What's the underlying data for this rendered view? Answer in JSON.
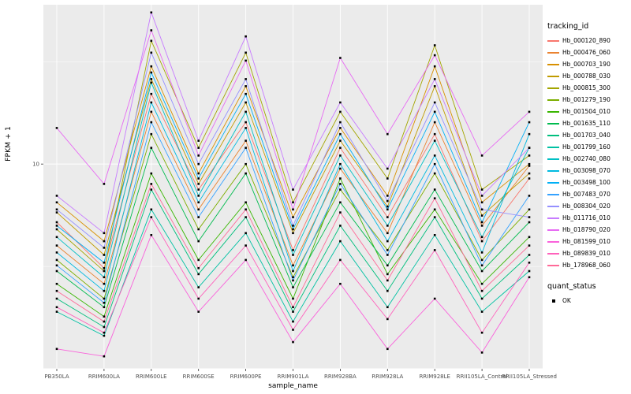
{
  "axes": {
    "x_title": "sample_name",
    "y_title": "FPKM + 1",
    "y_tick_label": "10"
  },
  "panel": {
    "bg": "#EBEBEB",
    "grid_major": "#FFFFFF",
    "grid_minor": "#FFFFFF",
    "tick_color": "#333333",
    "tick_label_color": "#4D4D4D",
    "point_color": "#000000"
  },
  "legend": {
    "tracking_title": "tracking_id",
    "quant_title": "quant_status",
    "quant_value": "OK",
    "quant_key_color": "#000000",
    "position": "right"
  },
  "chart_data": {
    "type": "line",
    "title": "",
    "xlabel": "sample_name",
    "ylabel": "FPKM + 1",
    "y_scale": "log10",
    "ylim": [
      1,
      60
    ],
    "y_major_ticks": [
      10
    ],
    "y_gridlines_major": [
      1,
      10
    ],
    "y_gridlines_minor": [
      3.162,
      31.62
    ],
    "grid": true,
    "legend_position": "right",
    "categories": [
      "PB350LA",
      "RRIM600LA",
      "RRIM600LE",
      "RRIM600SE",
      "RRIM600PE",
      "RRIM901LA",
      "RRIM928BA",
      "RRIM928LA",
      "RRIM928LE",
      "RRII105LA_Control",
      "RRII105LA_Stressed"
    ],
    "series": [
      {
        "name": "Hb_000120_890",
        "color": "#F8766D",
        "values": [
          5.2,
          3.1,
          22,
          7.5,
          16,
          3.8,
          12,
          5.5,
          14,
          4.2,
          8.5
        ]
      },
      {
        "name": "Hb_000476_060",
        "color": "#EA8331",
        "values": [
          4.0,
          2.6,
          18,
          6.0,
          13,
          3.2,
          9.5,
          4.6,
          16,
          5.0,
          9.8
        ]
      },
      {
        "name": "Hb_000703_190",
        "color": "#D89000",
        "values": [
          6.5,
          4.2,
          30,
          9.0,
          24,
          5.5,
          15,
          7.0,
          30,
          6.5,
          10
        ]
      },
      {
        "name": "Hb_000788_030",
        "color": "#C09B00",
        "values": [
          5.8,
          3.6,
          26,
          8.0,
          20,
          4.6,
          13,
          6.2,
          24,
          5.6,
          9.0
        ]
      },
      {
        "name": "Hb_000815_300",
        "color": "#A3A500",
        "values": [
          4.8,
          3.0,
          40,
          12,
          35,
          6.5,
          18,
          8.5,
          38,
          7.5,
          11
        ]
      },
      {
        "name": "Hb_001279_190",
        "color": "#7CAE00",
        "values": [
          3.4,
          2.2,
          14,
          4.8,
          10,
          2.8,
          7.5,
          3.8,
          9.0,
          3.4,
          6.0
        ]
      },
      {
        "name": "Hb_001504_010",
        "color": "#39B600",
        "values": [
          2.6,
          1.8,
          9.0,
          3.4,
          6.5,
          2.2,
          8.5,
          2.9,
          6.0,
          2.6,
          4.4
        ]
      },
      {
        "name": "Hb_001635_110",
        "color": "#00BB4E",
        "values": [
          3.0,
          2.0,
          12,
          4.2,
          9.0,
          2.5,
          6.5,
          3.2,
          7.5,
          3.0,
          5.2
        ]
      },
      {
        "name": "Hb_001703_040",
        "color": "#00BF7D",
        "values": [
          2.2,
          1.6,
          7.5,
          2.9,
          5.5,
          1.9,
          5.0,
          2.4,
          5.5,
          2.2,
          3.6
        ]
      },
      {
        "name": "Hb_001799_160",
        "color": "#00C1A3",
        "values": [
          1.9,
          1.45,
          6.0,
          2.5,
          4.6,
          1.7,
          4.2,
          2.0,
          4.5,
          1.9,
          3.0
        ]
      },
      {
        "name": "Hb_002740_080",
        "color": "#00BFC4",
        "values": [
          4.4,
          2.8,
          25,
          7.0,
          18,
          3.6,
          11,
          5.0,
          13,
          4.4,
          12
        ]
      },
      {
        "name": "Hb_003098_070",
        "color": "#00BAE0",
        "values": [
          3.7,
          2.4,
          20,
          6.5,
          15,
          3.0,
          10,
          4.2,
          11,
          3.7,
          14
        ]
      },
      {
        "name": "Hb_003498_100",
        "color": "#00B0F6",
        "values": [
          5.0,
          3.3,
          28,
          8.5,
          22,
          4.8,
          14,
          6.0,
          18,
          5.2,
          16
        ]
      },
      {
        "name": "Hb_007483_070",
        "color": "#35A2FF",
        "values": [
          3.2,
          2.1,
          16,
          5.5,
          12,
          2.7,
          8.0,
          3.6,
          10,
          3.2,
          7.0
        ]
      },
      {
        "name": "Hb_008304_020",
        "color": "#9590FF",
        "values": [
          6.0,
          3.9,
          35,
          10,
          26,
          5.0,
          16,
          6.6,
          20,
          6.0,
          5.5
        ]
      },
      {
        "name": "Hb_011716_010",
        "color": "#C77CFF",
        "values": [
          7.0,
          4.6,
          55,
          13,
          42,
          7.5,
          20,
          9.5,
          26,
          7.0,
          12
        ]
      },
      {
        "name": "Hb_018790_020",
        "color": "#E76BF3",
        "values": [
          15,
          8.0,
          45,
          11,
          32,
          6.0,
          33,
          14,
          34,
          11,
          18
        ]
      },
      {
        "name": "Hb_081599_010",
        "color": "#FA62DB",
        "values": [
          1.25,
          1.15,
          4.5,
          1.9,
          3.4,
          1.35,
          2.6,
          1.25,
          2.2,
          1.2,
          2.8
        ]
      },
      {
        "name": "Hb_089839_010",
        "color": "#FF62BC",
        "values": [
          2.0,
          1.5,
          5.5,
          2.2,
          4.0,
          1.55,
          3.4,
          1.75,
          3.8,
          1.5,
          3.3
        ]
      },
      {
        "name": "Hb_178968_060",
        "color": "#FF6A98",
        "values": [
          2.4,
          1.7,
          8.0,
          3.1,
          6.0,
          2.0,
          5.8,
          2.7,
          6.8,
          2.4,
          4.0
        ]
      }
    ]
  }
}
